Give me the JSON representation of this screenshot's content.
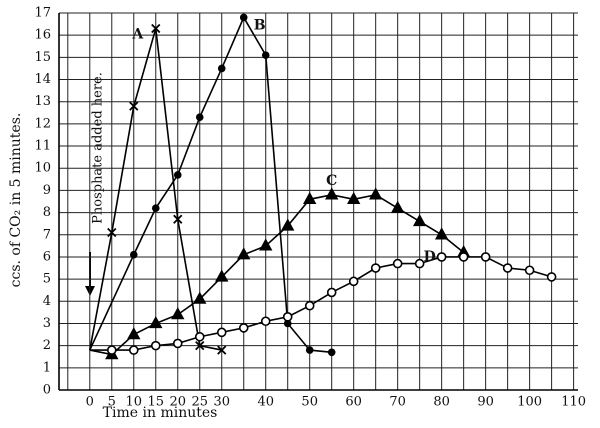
{
  "chart_data": {
    "type": "line",
    "y_label": "ccs. of CO₂ in 5 minutes.",
    "x_label": "Time in minutes",
    "annotation": "Phosphate added here.",
    "xlim": [
      -7,
      111
    ],
    "ylim": [
      0,
      17
    ],
    "xticks": [
      0,
      5,
      10,
      15,
      20,
      25,
      30,
      40,
      50,
      60,
      70,
      80,
      90,
      100,
      110
    ],
    "xminor": [
      -5,
      35,
      45,
      55,
      65,
      75,
      85,
      95,
      105
    ],
    "yticks": [
      0,
      1,
      2,
      3,
      4,
      5,
      6,
      7,
      8,
      9,
      10,
      11,
      12,
      13,
      14,
      15,
      16,
      17
    ],
    "grid": true,
    "series": [
      {
        "name": "A",
        "color": "#000000",
        "marker": "cross",
        "x": [
          0,
          5,
          10,
          15,
          20,
          25,
          30
        ],
        "values": [
          1.8,
          7.1,
          12.8,
          16.3,
          7.7,
          2.0,
          1.8
        ]
      },
      {
        "name": "B",
        "color": "#000000",
        "marker": "circle",
        "x": [
          0,
          10,
          15,
          20,
          25,
          30,
          35,
          40,
          45,
          50,
          55
        ],
        "values": [
          1.8,
          6.1,
          8.2,
          9.7,
          12.3,
          14.5,
          16.8,
          15.1,
          3.0,
          1.8,
          1.7
        ]
      },
      {
        "name": "C",
        "color": "#000000",
        "marker": "triangle",
        "x": [
          0,
          5,
          10,
          15,
          20,
          25,
          30,
          35,
          40,
          45,
          50,
          55,
          60,
          65,
          70,
          75,
          80,
          85
        ],
        "values": [
          1.8,
          1.6,
          2.5,
          3.0,
          3.4,
          4.1,
          5.1,
          6.1,
          6.5,
          7.4,
          8.6,
          8.8,
          8.6,
          8.8,
          8.2,
          7.6,
          7.0,
          6.2
        ]
      },
      {
        "name": "D",
        "color": "#000000",
        "marker": "ring",
        "x": [
          0,
          5,
          10,
          15,
          20,
          25,
          30,
          35,
          40,
          45,
          50,
          55,
          60,
          65,
          70,
          75,
          80,
          85,
          90,
          95,
          100,
          105
        ],
        "values": [
          1.8,
          1.8,
          1.8,
          2.0,
          2.1,
          2.4,
          2.6,
          2.8,
          3.1,
          3.3,
          3.8,
          4.4,
          4.9,
          5.5,
          5.7,
          5.7,
          6.0,
          6.0,
          6.0,
          5.5,
          5.4,
          5.1
        ]
      }
    ]
  }
}
